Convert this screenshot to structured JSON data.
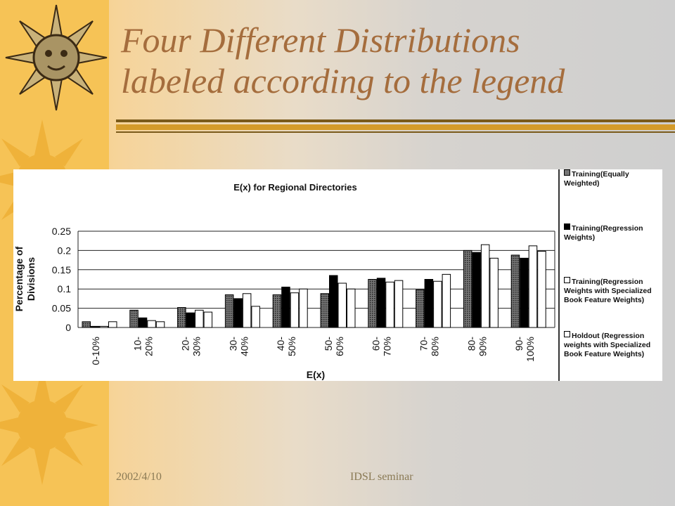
{
  "slide": {
    "title_line1": "Four Different Distributions",
    "title_line2": "labeled according to the legend",
    "footer_date": "2002/4/10",
    "footer_center": "IDSL seminar"
  },
  "chart_data": {
    "type": "bar",
    "title": "E(x) for Regional Directories",
    "xlabel": "E(x)",
    "ylabel": "Percentage of Divisions",
    "ylim": [
      0,
      0.25
    ],
    "yticks": [
      "0",
      "0.05",
      "0.1",
      "0.15",
      "0.2",
      "0.25"
    ],
    "grid": true,
    "legend": "right",
    "categories": [
      "0-10%",
      "10- 20%",
      "20- 30%",
      "30- 40%",
      "40- 50%",
      "50- 60%",
      "60- 70%",
      "70- 80%",
      "80- 90%",
      "90- 100%"
    ],
    "series": [
      {
        "name": "Training(Equally Weighted)",
        "fill": "dotted",
        "values": [
          0.015,
          0.045,
          0.052,
          0.085,
          0.085,
          0.088,
          0.125,
          0.098,
          0.2,
          0.188
        ]
      },
      {
        "name": "Training(Regression Weights)",
        "fill": "solid",
        "values": [
          0.003,
          0.025,
          0.038,
          0.075,
          0.105,
          0.135,
          0.128,
          0.125,
          0.195,
          0.18
        ]
      },
      {
        "name": "Training(Regression Weights with Specialized Book Feature Weights)",
        "fill": "hollow",
        "values": [
          0.003,
          0.018,
          0.045,
          0.088,
          0.09,
          0.115,
          0.118,
          0.12,
          0.215,
          0.212
        ]
      },
      {
        "name": "Holdout (Regression weights with Specialized Book Feature Weights)",
        "fill": "hollow",
        "values": [
          0.015,
          0.015,
          0.04,
          0.055,
          0.1,
          0.1,
          0.122,
          0.138,
          0.18,
          0.198
        ]
      }
    ]
  }
}
